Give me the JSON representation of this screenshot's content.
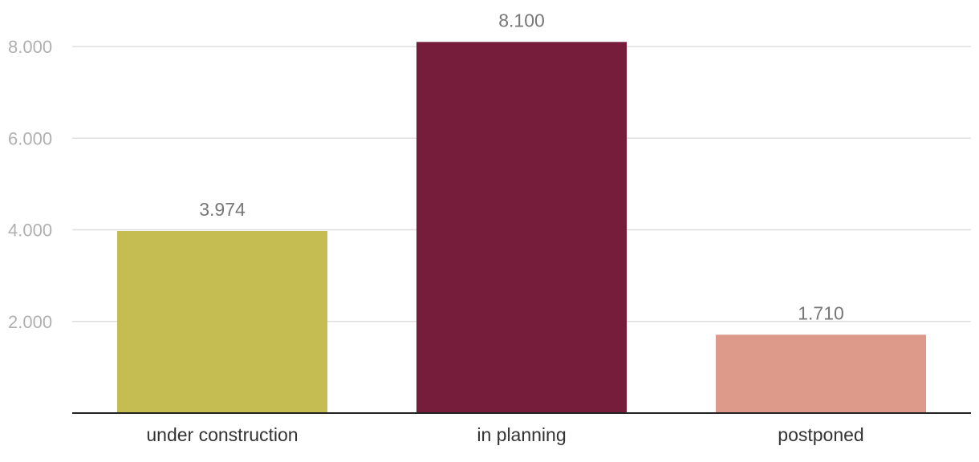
{
  "chart_data": {
    "type": "bar",
    "title": "",
    "xlabel": "",
    "ylabel": "",
    "categories": [
      "under construction",
      "in planning",
      "postponed"
    ],
    "values": [
      3974,
      8100,
      1710
    ],
    "value_labels": [
      "3.974",
      "8.100",
      "1.710"
    ],
    "colors": [
      "#c5bc52",
      "#761d3c",
      "#dd9a8a"
    ],
    "ylim": [
      0,
      8000
    ],
    "yticks": [
      2000,
      4000,
      6000,
      8000
    ],
    "ytick_labels": [
      "2.000",
      "4.000",
      "6.000",
      "8.000"
    ],
    "grid": true,
    "legend": "none"
  }
}
